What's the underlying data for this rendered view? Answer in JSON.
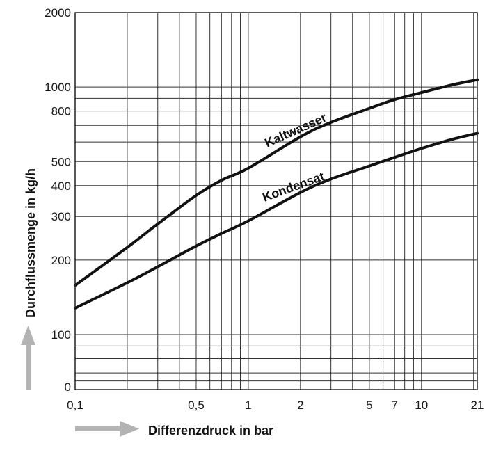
{
  "chart_data": {
    "type": "line",
    "xlabel": "Differenzdruck in bar",
    "ylabel": "Durchflussmenge in kg/h",
    "x_scale": "log",
    "y_scale": "log",
    "xlim": [
      0.1,
      21
    ],
    "ylim": [
      60,
      2000
    ],
    "x_ticks": [
      {
        "value": 0.1,
        "label": "0,1"
      },
      {
        "value": 0.5,
        "label": "0,5"
      },
      {
        "value": 1,
        "label": "1"
      },
      {
        "value": 2,
        "label": "2"
      },
      {
        "value": 5,
        "label": "5"
      },
      {
        "value": 7,
        "label": "7"
      },
      {
        "value": 10,
        "label": "10"
      },
      {
        "value": 21,
        "label": "21"
      }
    ],
    "y_ticks": [
      {
        "value": 100,
        "label": "100"
      },
      {
        "value": 200,
        "label": "200"
      },
      {
        "value": 300,
        "label": "300"
      },
      {
        "value": 400,
        "label": "400"
      },
      {
        "value": 500,
        "label": "500"
      },
      {
        "value": 800,
        "label": "800"
      },
      {
        "value": 1000,
        "label": "1000"
      },
      {
        "value": 2000,
        "label": "2000"
      }
    ],
    "y_bottom_label": "0",
    "x_grid": [
      0.2,
      0.3,
      0.4,
      0.5,
      0.6,
      0.7,
      0.8,
      0.9,
      1,
      2,
      3,
      4,
      5,
      6,
      7,
      8,
      9,
      10,
      20
    ],
    "y_grid": [
      60,
      65,
      70,
      80,
      90,
      100,
      200,
      300,
      400,
      500,
      600,
      700,
      800,
      900,
      1000
    ],
    "grid": true,
    "series": [
      {
        "name": "Kaltwasser",
        "x": [
          0.1,
          0.2,
          0.3,
          0.5,
          0.7,
          1,
          2,
          3,
          5,
          7,
          10,
          15,
          21
        ],
        "y": [
          158,
          225,
          280,
          365,
          420,
          470,
          630,
          720,
          820,
          890,
          950,
          1020,
          1070
        ]
      },
      {
        "name": "Kondensat",
        "x": [
          0.1,
          0.2,
          0.3,
          0.5,
          0.7,
          1,
          2,
          3,
          5,
          7,
          10,
          15,
          21
        ],
        "y": [
          128,
          162,
          188,
          228,
          256,
          288,
          375,
          425,
          480,
          520,
          565,
          615,
          650
        ]
      }
    ]
  }
}
